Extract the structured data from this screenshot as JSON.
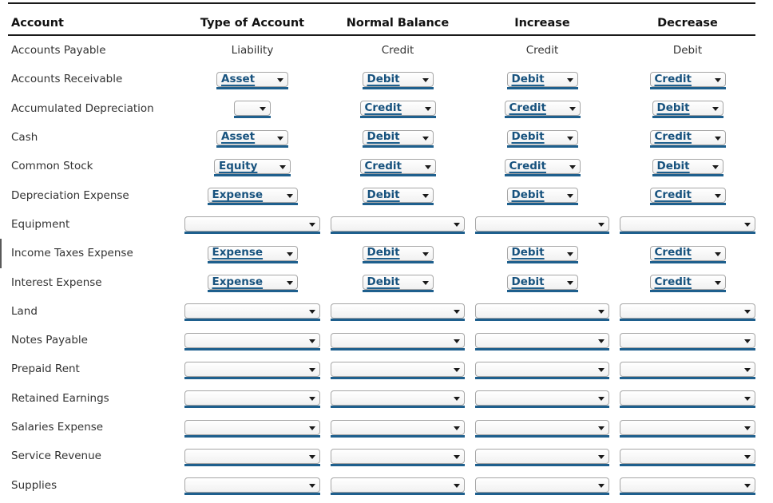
{
  "colors": {
    "link_blue": "#17527e",
    "underline_blue": "#1e5f8d",
    "line_black": "#1a1a1a",
    "label_gray": "#333333"
  },
  "table": {
    "headers": [
      "Account",
      "Type of Account",
      "Normal Balance",
      "Increase",
      "Decrease"
    ],
    "rows": [
      {
        "account": "Accounts Payable",
        "cells": [
          {
            "control": "text",
            "value": "Liability"
          },
          {
            "control": "text",
            "value": "Credit"
          },
          {
            "control": "text",
            "value": "Credit"
          },
          {
            "control": "text",
            "value": "Debit"
          }
        ]
      },
      {
        "account": "Accounts Receivable",
        "cells": [
          {
            "control": "select",
            "size": "small",
            "value": "Asset"
          },
          {
            "control": "select",
            "size": "small",
            "value": "Debit"
          },
          {
            "control": "select",
            "size": "small",
            "value": "Debit"
          },
          {
            "control": "select",
            "size": "small",
            "value": "Credit"
          }
        ]
      },
      {
        "account": "Accumulated Depreciation",
        "cells": [
          {
            "control": "select",
            "size": "narrow",
            "value": ""
          },
          {
            "control": "select",
            "size": "small",
            "value": "Credit"
          },
          {
            "control": "select",
            "size": "small",
            "value": "Credit"
          },
          {
            "control": "select",
            "size": "small",
            "value": "Debit"
          }
        ]
      },
      {
        "account": "Cash",
        "cells": [
          {
            "control": "select",
            "size": "small",
            "value": "Asset"
          },
          {
            "control": "select",
            "size": "small",
            "value": "Debit"
          },
          {
            "control": "select",
            "size": "small",
            "value": "Debit"
          },
          {
            "control": "select",
            "size": "small",
            "value": "Credit"
          }
        ]
      },
      {
        "account": "Common Stock",
        "cells": [
          {
            "control": "select",
            "size": "small",
            "value": "Equity"
          },
          {
            "control": "select",
            "size": "small",
            "value": "Credit"
          },
          {
            "control": "select",
            "size": "small",
            "value": "Credit"
          },
          {
            "control": "select",
            "size": "small",
            "value": "Debit"
          }
        ]
      },
      {
        "account": "Depreciation Expense",
        "cells": [
          {
            "control": "select",
            "size": "small",
            "value": "Expense"
          },
          {
            "control": "select",
            "size": "small",
            "value": "Debit"
          },
          {
            "control": "select",
            "size": "small",
            "value": "Debit"
          },
          {
            "control": "select",
            "size": "small",
            "value": "Credit"
          }
        ]
      },
      {
        "account": "Equipment",
        "cells": [
          {
            "control": "select",
            "size": "wide",
            "value": ""
          },
          {
            "control": "select",
            "size": "wide",
            "value": ""
          },
          {
            "control": "select",
            "size": "wide",
            "value": ""
          },
          {
            "control": "select",
            "size": "wide",
            "value": ""
          }
        ]
      },
      {
        "account": "Income Taxes Expense",
        "cells": [
          {
            "control": "select",
            "size": "small",
            "value": "Expense"
          },
          {
            "control": "select",
            "size": "small",
            "value": "Debit"
          },
          {
            "control": "select",
            "size": "small",
            "value": "Debit"
          },
          {
            "control": "select",
            "size": "small",
            "value": "Credit"
          }
        ]
      },
      {
        "account": "Interest Expense",
        "cells": [
          {
            "control": "select",
            "size": "small",
            "value": "Expense"
          },
          {
            "control": "select",
            "size": "small",
            "value": "Debit"
          },
          {
            "control": "select",
            "size": "small",
            "value": "Debit"
          },
          {
            "control": "select",
            "size": "small",
            "value": "Credit"
          }
        ]
      },
      {
        "account": "Land",
        "cells": [
          {
            "control": "select",
            "size": "wide",
            "value": ""
          },
          {
            "control": "select",
            "size": "wide",
            "value": ""
          },
          {
            "control": "select",
            "size": "wide",
            "value": ""
          },
          {
            "control": "select",
            "size": "wide",
            "value": ""
          }
        ]
      },
      {
        "account": "Notes Payable",
        "cells": [
          {
            "control": "select",
            "size": "wide",
            "value": ""
          },
          {
            "control": "select",
            "size": "wide",
            "value": ""
          },
          {
            "control": "select",
            "size": "wide",
            "value": ""
          },
          {
            "control": "select",
            "size": "wide",
            "value": ""
          }
        ]
      },
      {
        "account": "Prepaid Rent",
        "cells": [
          {
            "control": "select",
            "size": "wide",
            "value": ""
          },
          {
            "control": "select",
            "size": "wide",
            "value": ""
          },
          {
            "control": "select",
            "size": "wide",
            "value": ""
          },
          {
            "control": "select",
            "size": "wide",
            "value": ""
          }
        ]
      },
      {
        "account": "Retained Earnings",
        "cells": [
          {
            "control": "select",
            "size": "wide",
            "value": ""
          },
          {
            "control": "select",
            "size": "wide",
            "value": ""
          },
          {
            "control": "select",
            "size": "wide",
            "value": ""
          },
          {
            "control": "select",
            "size": "wide",
            "value": ""
          }
        ]
      },
      {
        "account": "Salaries Expense",
        "cells": [
          {
            "control": "select",
            "size": "wide",
            "value": ""
          },
          {
            "control": "select",
            "size": "wide",
            "value": ""
          },
          {
            "control": "select",
            "size": "wide",
            "value": ""
          },
          {
            "control": "select",
            "size": "wide",
            "value": ""
          }
        ]
      },
      {
        "account": "Service Revenue",
        "cells": [
          {
            "control": "select",
            "size": "wide",
            "value": ""
          },
          {
            "control": "select",
            "size": "wide",
            "value": ""
          },
          {
            "control": "select",
            "size": "wide",
            "value": ""
          },
          {
            "control": "select",
            "size": "wide",
            "value": ""
          }
        ]
      },
      {
        "account": "Supplies",
        "cells": [
          {
            "control": "select",
            "size": "wide",
            "value": ""
          },
          {
            "control": "select",
            "size": "wide",
            "value": ""
          },
          {
            "control": "select",
            "size": "wide",
            "value": ""
          },
          {
            "control": "select",
            "size": "wide",
            "value": ""
          }
        ]
      }
    ]
  }
}
